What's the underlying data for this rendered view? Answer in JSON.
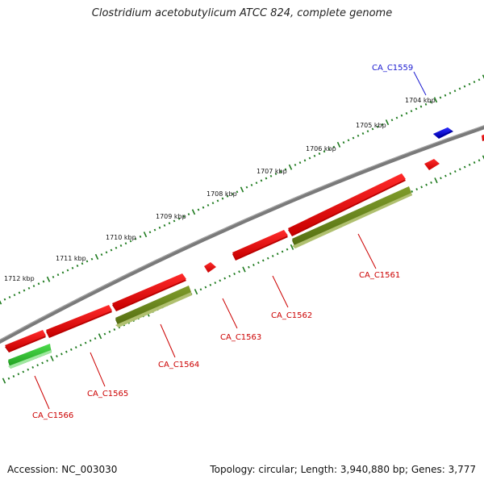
{
  "title": "Clostridium acetobutylicum ATCC 824, complete genome",
  "footer": {
    "accession": "Accession: NC_003030",
    "summary": "Topology: circular; Length: 3,940,880 bp; Genes: 3,777"
  },
  "colors": {
    "backbone": "#7a7a7a",
    "ticks": "#1d7a1d",
    "gene_red": "#e81010",
    "gene_olive": "#6b8a1e",
    "gene_green": "#2fbf2f",
    "gene_blue": "#1212d8",
    "label_red": "#cc0000",
    "label_blue": "#1a1ad0"
  },
  "tick_labels": [
    "1704 kbp",
    "1705 kbp",
    "1706 kbp",
    "1707 kbp",
    "1708 kbp",
    "1709 kbp",
    "1710 kbp",
    "1711 kbp",
    "1712 kbp"
  ],
  "gene_labels": [
    {
      "id": "CA_C1559",
      "color": "blue"
    },
    {
      "id": "CA_C1561",
      "color": "red"
    },
    {
      "id": "CA_C1562",
      "color": "red"
    },
    {
      "id": "CA_C1563",
      "color": "red"
    },
    {
      "id": "CA_C1564",
      "color": "red"
    },
    {
      "id": "CA_C1565",
      "color": "red"
    },
    {
      "id": "CA_C1566",
      "color": "red"
    }
  ]
}
